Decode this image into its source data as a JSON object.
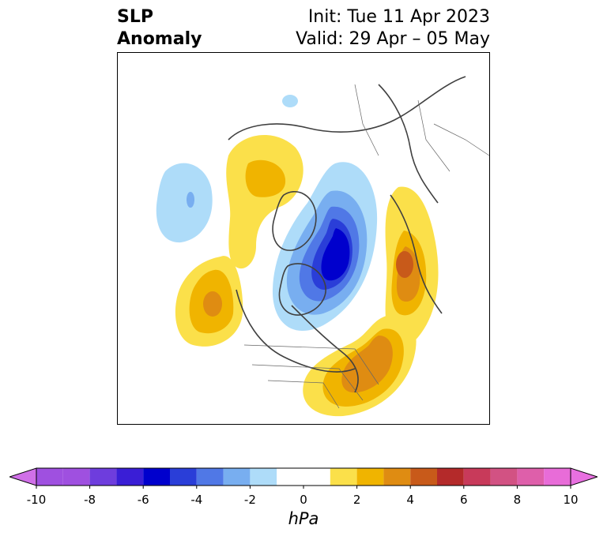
{
  "title": {
    "left_line1": "SLP",
    "left_line2": "Anomaly",
    "right_line1": "Init: Tue 11 Apr 2023",
    "right_line2": "Valid: 29 Apr – 05 May"
  },
  "colorbar": {
    "unit": "hPa",
    "min": -10,
    "max": 10,
    "extend": "both",
    "ticks": [
      "-10",
      "-8",
      "-6",
      "-4",
      "-2",
      "0",
      "2",
      "4",
      "6",
      "8",
      "10"
    ],
    "bins": [
      {
        "lo": -10,
        "hi": -9,
        "color": "#9f50e0"
      },
      {
        "lo": -9,
        "hi": -8,
        "color": "#9f50e0"
      },
      {
        "lo": -8,
        "hi": -7,
        "color": "#6e3ddd"
      },
      {
        "lo": -7,
        "hi": -6,
        "color": "#3a1ed6"
      },
      {
        "lo": -6,
        "hi": -5,
        "color": "#0000cd"
      },
      {
        "lo": -5,
        "hi": -4,
        "color": "#2a3ed8"
      },
      {
        "lo": -4,
        "hi": -3,
        "color": "#5078e6"
      },
      {
        "lo": -3,
        "hi": -2,
        "color": "#78aef0"
      },
      {
        "lo": -2,
        "hi": -1,
        "color": "#aedcf9"
      },
      {
        "lo": -1,
        "hi": 1,
        "color": "#ffffff"
      },
      {
        "lo": 1,
        "hi": 2,
        "color": "#fbe04a"
      },
      {
        "lo": 2,
        "hi": 3,
        "color": "#f0b400"
      },
      {
        "lo": 3,
        "hi": 4,
        "color": "#df8c12"
      },
      {
        "lo": 4,
        "hi": 5,
        "color": "#c85a1a"
      },
      {
        "lo": 5,
        "hi": 6,
        "color": "#b42a2a"
      },
      {
        "lo": 6,
        "hi": 7,
        "color": "#c83a5a"
      },
      {
        "lo": 7,
        "hi": 8,
        "color": "#d25283"
      },
      {
        "lo": 8,
        "hi": 9,
        "color": "#de5faa"
      },
      {
        "lo": 9,
        "hi": 10,
        "color": "#e86cd8"
      }
    ],
    "under_color": "#d070e8",
    "over_color": "#e870e0"
  },
  "map": {
    "projection": "north-polar-stereographic",
    "coastline_color": "#404040",
    "anomaly_centers": [
      {
        "name": "polar-low",
        "sign": "negative",
        "peak_hpa": -6
      },
      {
        "name": "north-pacific-high",
        "sign": "positive",
        "peak_hpa": 4
      },
      {
        "name": "west-atlantic-high",
        "sign": "positive",
        "peak_hpa": 4
      },
      {
        "name": "europe-scandinavia-high",
        "sign": "positive",
        "peak_hpa": 5
      },
      {
        "name": "canada-high",
        "sign": "positive",
        "peak_hpa": 3
      },
      {
        "name": "siberia-low",
        "sign": "negative",
        "peak_hpa": -2
      },
      {
        "name": "asia-small-low",
        "sign": "negative",
        "peak_hpa": -1
      }
    ]
  }
}
